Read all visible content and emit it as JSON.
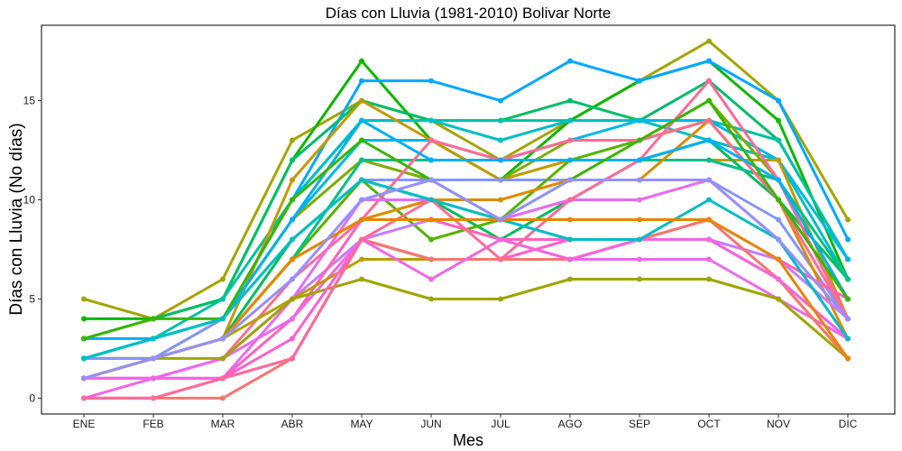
{
  "chart_data": {
    "type": "line",
    "title": "Días con Lluvia (1981-2010)  Bolivar Norte",
    "xlabel": "Mes",
    "ylabel": "Días con Lluvia (No días)",
    "categories": [
      "ENE",
      "FEB",
      "MAR",
      "ABR",
      "MAY",
      "JUN",
      "JUL",
      "AGO",
      "SEP",
      "OCT",
      "NOV",
      "DIC"
    ],
    "ylim": [
      -0.8,
      18.8
    ],
    "yticks": [
      0,
      5,
      10,
      15
    ],
    "grid": false,
    "legend": "none",
    "series": [
      {
        "color": "#a3a500",
        "values": [
          5,
          4,
          6,
          13,
          15,
          14,
          12,
          14,
          16,
          18,
          15,
          9
        ]
      },
      {
        "color": "#0cb702",
        "values": [
          4,
          4,
          5,
          12,
          17,
          13,
          11,
          14,
          16,
          17,
          14,
          6
        ]
      },
      {
        "color": "#00a9ff",
        "values": [
          3,
          3,
          4,
          10,
          16,
          16,
          15,
          17,
          16,
          17,
          15,
          8
        ]
      },
      {
        "color": "#00be67",
        "values": [
          3,
          4,
          5,
          12,
          15,
          14,
          14,
          15,
          14,
          16,
          13,
          7
        ]
      },
      {
        "color": "#00c1a9",
        "values": [
          2,
          3,
          5,
          10,
          14,
          14,
          14,
          14,
          14,
          14,
          13,
          7
        ]
      },
      {
        "color": "#00bfc4",
        "values": [
          2,
          3,
          4,
          10,
          14,
          14,
          13,
          14,
          14,
          13,
          12,
          6
        ]
      },
      {
        "color": "#00b8e7",
        "values": [
          2,
          3,
          4,
          9,
          13,
          13,
          12,
          13,
          14,
          14,
          12,
          7
        ]
      },
      {
        "color": "#c49a00",
        "values": [
          2,
          2,
          3,
          11,
          15,
          13,
          11,
          12,
          12,
          12,
          12,
          4
        ]
      },
      {
        "color": "#7cae00",
        "values": [
          2,
          2,
          4,
          9,
          12,
          11,
          11,
          13,
          13,
          15,
          11,
          5
        ]
      },
      {
        "color": "#8494ff",
        "values": [
          2,
          2,
          4,
          8,
          11,
          11,
          11,
          11,
          11,
          11,
          9,
          4
        ]
      },
      {
        "color": "#00bd5c",
        "values": [
          1,
          2,
          3,
          8,
          11,
          10,
          8,
          10,
          12,
          13,
          10,
          6
        ]
      },
      {
        "color": "#53b400",
        "values": [
          1,
          2,
          3,
          7,
          11,
          8,
          9,
          12,
          13,
          14,
          10,
          5
        ]
      },
      {
        "color": "#00c08b",
        "values": [
          1,
          2,
          3,
          7,
          12,
          12,
          12,
          12,
          12,
          12,
          11,
          6
        ]
      },
      {
        "color": "#de8c00",
        "values": [
          1,
          2,
          3,
          7,
          9,
          10,
          10,
          11,
          11,
          14,
          10,
          3
        ]
      },
      {
        "color": "#ff6c91",
        "values": [
          1,
          1,
          2,
          6,
          9,
          13,
          12,
          13,
          13,
          14,
          10,
          4
        ]
      },
      {
        "color": "#e76bf3",
        "values": [
          1,
          1,
          1,
          5,
          10,
          10,
          9,
          10,
          10,
          11,
          8,
          3
        ]
      },
      {
        "color": "#c77cff",
        "values": [
          1,
          1,
          2,
          5,
          8,
          9,
          9,
          8,
          8,
          8,
          7,
          4
        ]
      },
      {
        "color": "#ff62bc",
        "values": [
          1,
          1,
          1,
          4,
          9,
          9,
          8,
          8,
          8,
          9,
          7,
          5
        ]
      },
      {
        "color": "#ed68ed",
        "values": [
          1,
          1,
          2,
          4,
          8,
          7,
          7,
          7,
          7,
          7,
          5,
          3
        ]
      },
      {
        "color": "#b79f00",
        "values": [
          1,
          2,
          3,
          5,
          7,
          7,
          7,
          7,
          8,
          8,
          6,
          2
        ]
      },
      {
        "color": "#9da700",
        "values": [
          1,
          2,
          2,
          5,
          6,
          5,
          5,
          6,
          6,
          6,
          5,
          2
        ]
      },
      {
        "color": "#fd61d1",
        "values": [
          0,
          0,
          1,
          3,
          8,
          7,
          7,
          8,
          8,
          8,
          6,
          3
        ]
      },
      {
        "color": "#f8766d",
        "values": [
          0,
          0,
          0,
          2,
          8,
          7,
          7,
          7,
          8,
          9,
          6,
          2
        ]
      },
      {
        "color": "#f564e3",
        "values": [
          0,
          1,
          1,
          2,
          8,
          6,
          8,
          7,
          8,
          8,
          6,
          3
        ]
      },
      {
        "color": "#ff6a98",
        "values": [
          0,
          0,
          1,
          2,
          8,
          10,
          7,
          10,
          12,
          16,
          11,
          4
        ]
      },
      {
        "color": "#00b0f6",
        "values": [
          2,
          3,
          4,
          9,
          14,
          12,
          12,
          12,
          12,
          13,
          11,
          5
        ]
      },
      {
        "color": "#39b600",
        "values": [
          3,
          4,
          4,
          10,
          13,
          11,
          9,
          11,
          13,
          15,
          10,
          5
        ]
      },
      {
        "color": "#00bfc4",
        "values": [
          2,
          3,
          4,
          8,
          11,
          10,
          9,
          8,
          8,
          10,
          8,
          3
        ]
      },
      {
        "color": "#e58700",
        "values": [
          1,
          2,
          3,
          7,
          9,
          9,
          9,
          9,
          9,
          9,
          7,
          2
        ]
      },
      {
        "color": "#9590ff",
        "values": [
          1,
          2,
          3,
          6,
          10,
          11,
          9,
          11,
          11,
          11,
          8,
          4
        ]
      }
    ]
  }
}
